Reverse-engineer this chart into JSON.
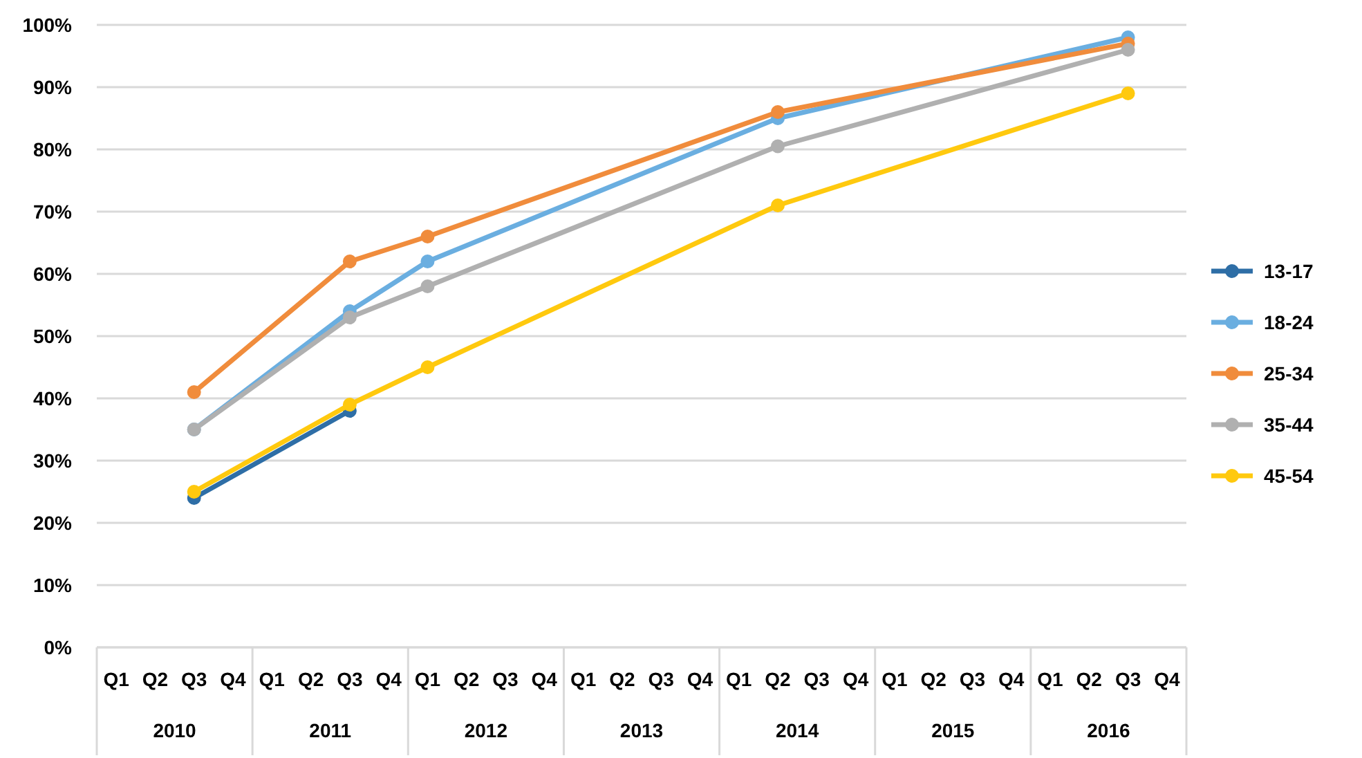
{
  "chart_data": {
    "type": "line",
    "categories": [
      "Q1",
      "Q2",
      "Q3",
      "Q4",
      "Q1",
      "Q2",
      "Q3",
      "Q4",
      "Q1",
      "Q2",
      "Q3",
      "Q4",
      "Q1",
      "Q2",
      "Q3",
      "Q4",
      "Q1",
      "Q2",
      "Q3",
      "Q4",
      "Q1",
      "Q2",
      "Q3",
      "Q4",
      "Q1",
      "Q2",
      "Q3",
      "Q4"
    ],
    "annotations": [
      "2010",
      "2011",
      "2012",
      "2013",
      "2014",
      "2015",
      "2016"
    ],
    "series": [
      {
        "name": "13-17",
        "color": "#2e6ea6",
        "values": [
          null,
          null,
          24,
          null,
          null,
          null,
          38,
          null,
          null,
          null,
          null,
          null,
          null,
          null,
          null,
          null,
          null,
          null,
          null,
          null,
          null,
          null,
          null,
          null,
          null,
          null,
          null,
          null
        ]
      },
      {
        "name": "18-24",
        "color": "#6aaee0",
        "values": [
          null,
          null,
          35,
          null,
          null,
          null,
          54,
          null,
          62,
          null,
          null,
          null,
          null,
          null,
          null,
          null,
          null,
          85,
          null,
          null,
          null,
          null,
          null,
          null,
          null,
          null,
          98,
          null
        ]
      },
      {
        "name": "25-34",
        "color": "#f08c3c",
        "values": [
          null,
          null,
          41,
          null,
          null,
          null,
          62,
          null,
          66,
          null,
          null,
          null,
          null,
          null,
          null,
          null,
          null,
          86,
          null,
          null,
          null,
          null,
          null,
          null,
          null,
          null,
          97,
          null
        ]
      },
      {
        "name": "35-44",
        "color": "#b0b0b0",
        "values": [
          null,
          null,
          35,
          null,
          null,
          null,
          53,
          null,
          58,
          null,
          null,
          null,
          null,
          null,
          null,
          null,
          null,
          80.5,
          null,
          null,
          null,
          null,
          null,
          null,
          null,
          null,
          96,
          null
        ]
      },
      {
        "name": "45-54",
        "color": "#ffc90e",
        "values": [
          null,
          null,
          25,
          null,
          null,
          null,
          39,
          null,
          45,
          null,
          null,
          null,
          null,
          null,
          null,
          null,
          null,
          71,
          null,
          null,
          null,
          null,
          null,
          null,
          null,
          null,
          89,
          null
        ]
      }
    ],
    "ylim": [
      0,
      100
    ],
    "yticks": [
      {
        "value": 0,
        "label": "0%"
      },
      {
        "value": 10,
        "label": "10%"
      },
      {
        "value": 20,
        "label": "20%"
      },
      {
        "value": 30,
        "label": "30%"
      },
      {
        "value": 40,
        "label": "40%"
      },
      {
        "value": 50,
        "label": "50%"
      },
      {
        "value": 60,
        "label": "60%"
      },
      {
        "value": 70,
        "label": "70%"
      },
      {
        "value": 80,
        "label": "80%"
      },
      {
        "value": 90,
        "label": "90%"
      },
      {
        "value": 100,
        "label": "100%"
      }
    ],
    "grid": "y",
    "legend": "right",
    "marker": "circle",
    "line_style": "solid"
  }
}
